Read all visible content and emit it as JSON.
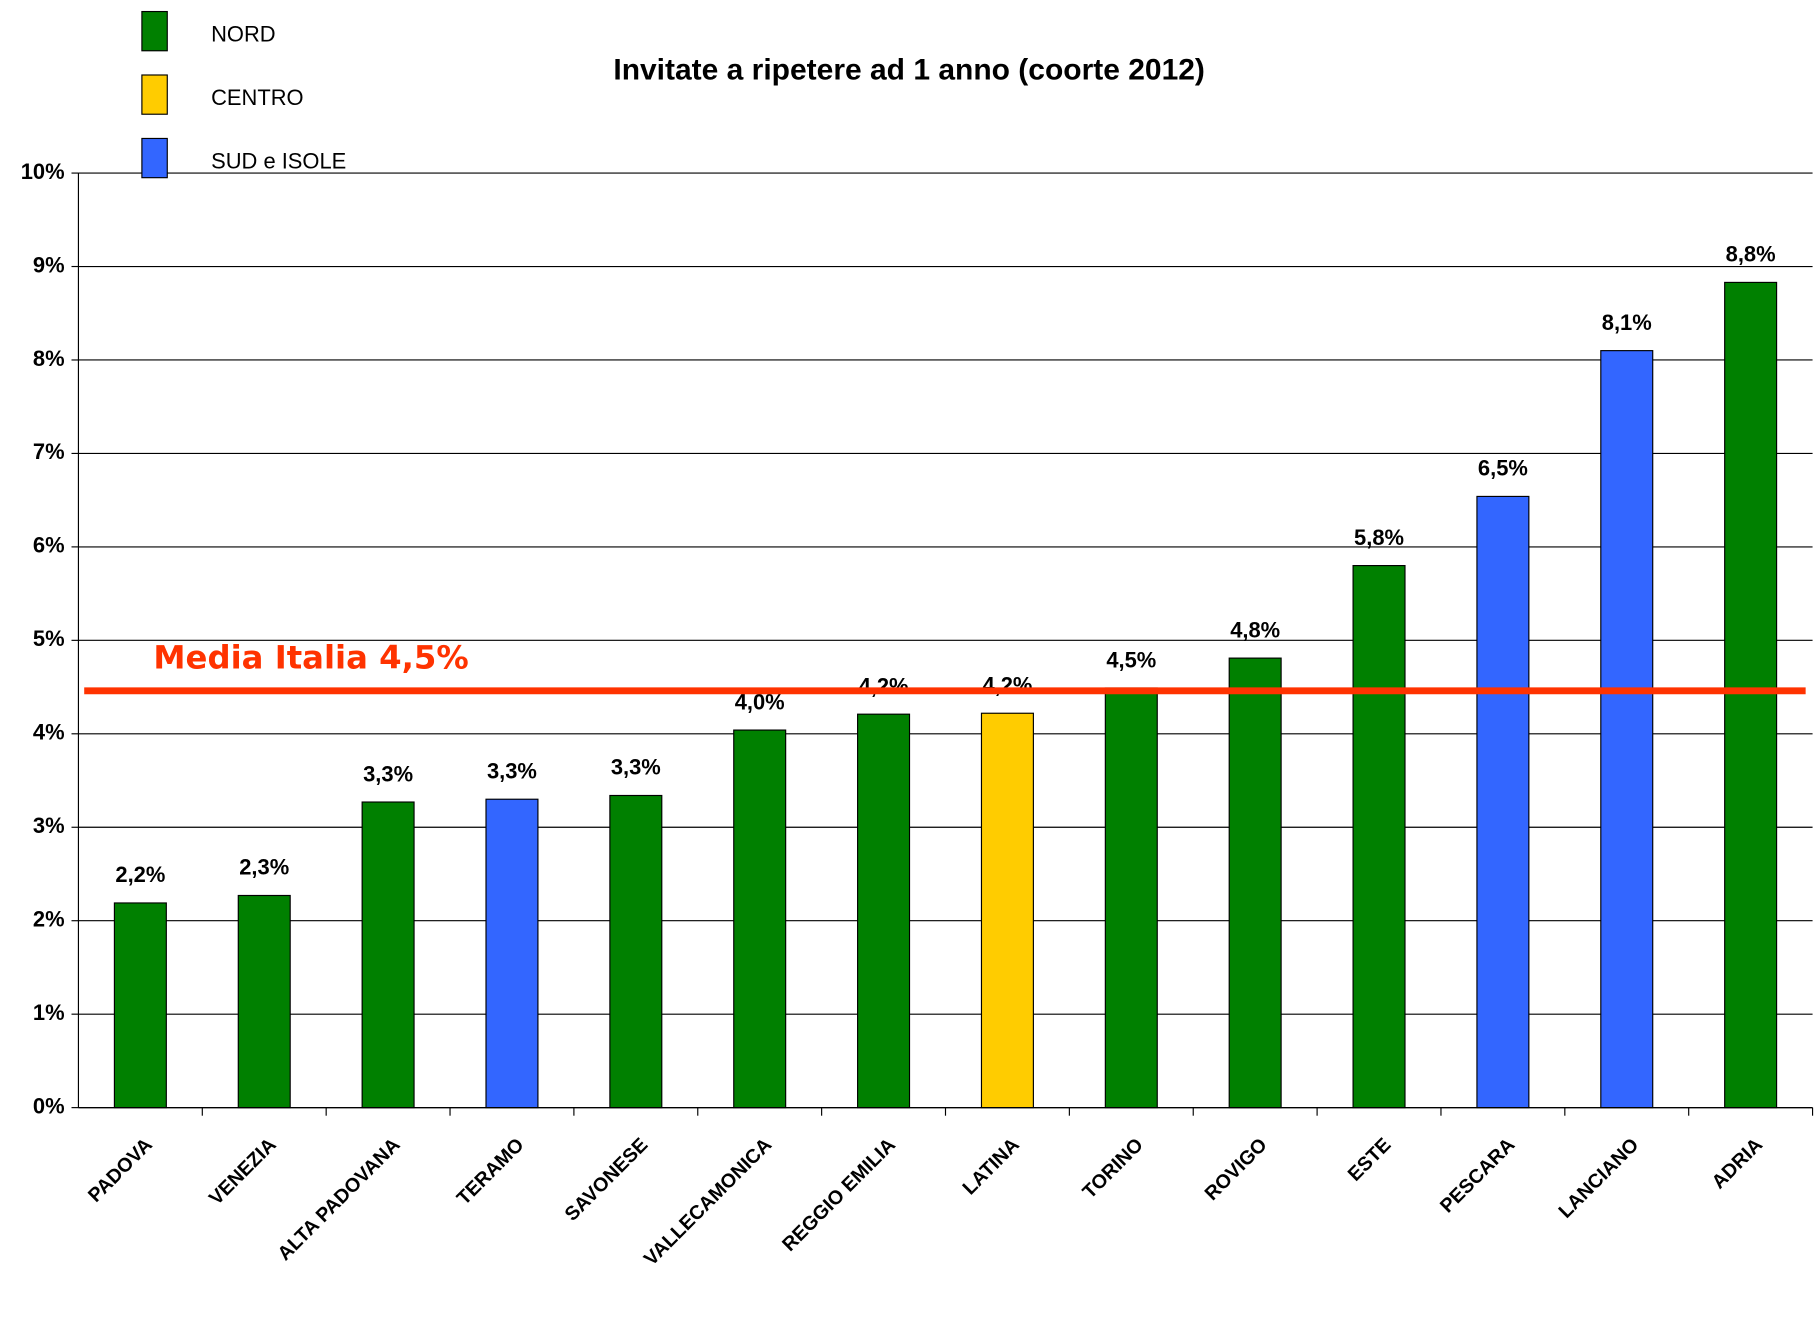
{
  "chart_data": {
    "type": "bar",
    "title": "Invitate a ripetere ad 1 anno (coorte 2012)",
    "categories": [
      "PADOVA",
      "VENEZIA",
      "ALTA PADOVANA",
      "TERAMO",
      "SAVONESE",
      "VALLECAMONICA",
      "REGGIO EMILIA",
      "LATINA",
      "TORINO",
      "ROVIGO",
      "ESTE",
      "PESCARA",
      "LANCIANO",
      "ADRIA"
    ],
    "values": [
      2.19,
      2.27,
      3.27,
      3.3,
      3.34,
      4.04,
      4.21,
      4.22,
      4.49,
      4.81,
      5.8,
      6.54,
      8.1,
      8.83
    ],
    "value_labels": [
      "2,2%",
      "2,3%",
      "3,3%",
      "3,3%",
      "3,3%",
      "4,0%",
      "4,2%",
      "4,2%",
      "4,5%",
      "4,8%",
      "5,8%",
      "6,5%",
      "8,1%",
      "8,8%"
    ],
    "bar_colors": [
      "#008000",
      "#008000",
      "#008000",
      "#3366ff",
      "#008000",
      "#008000",
      "#008000",
      "#ffcc00",
      "#008000",
      "#008000",
      "#008000",
      "#3366ff",
      "#3366ff",
      "#008000"
    ],
    "legend": [
      {
        "name": "NORD",
        "color": "#008000"
      },
      {
        "name": "CENTRO",
        "color": "#ffcc00"
      },
      {
        "name": "SUD e ISOLE",
        "color": "#3366ff"
      }
    ],
    "ylim": [
      0,
      10
    ],
    "yticks": [
      {
        "value": 0,
        "label": "0%"
      },
      {
        "value": 1,
        "label": "1%"
      },
      {
        "value": 2,
        "label": "2%"
      },
      {
        "value": 3,
        "label": "3%"
      },
      {
        "value": 4,
        "label": "4%"
      },
      {
        "value": 5,
        "label": "5%"
      },
      {
        "value": 6,
        "label": "6%"
      },
      {
        "value": 7,
        "label": "7%"
      },
      {
        "value": 8,
        "label": "8%"
      },
      {
        "value": 9,
        "label": "9%"
      },
      {
        "value": 10,
        "label": "10%"
      }
    ],
    "grid": true,
    "reference_line": {
      "value": 4.46,
      "label": "Media Italia 4,5%",
      "color": "#ff3300"
    }
  }
}
